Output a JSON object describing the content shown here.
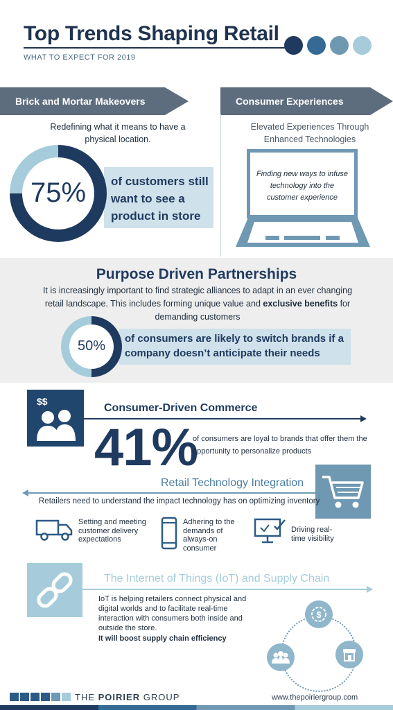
{
  "header": {
    "title": "Top Trends Shaping Retail",
    "subtitle": "WHAT TO EXPECT FOR 2019",
    "dot_colors": [
      "#1f3a5f",
      "#356a95",
      "#6f98b3",
      "#a6ccdb"
    ]
  },
  "brick": {
    "banner": "Brick and Mortar Makeovers",
    "intro": "Redefining what it means to have a physical location.",
    "stat_value": "75%",
    "stat_fraction": 0.75,
    "stat_text": "of customers still want to see a product in store"
  },
  "consumer_exp": {
    "banner": "Consumer Experiences",
    "intro": "Elevated Experiences Through Enhanced Technologies",
    "screen_text": "Finding new ways to infuse technology into the customer experience"
  },
  "partnerships": {
    "title": "Purpose Driven Partnerships",
    "body_before": "It is increasingly important to find strategic alliances to adapt in an ever changing retail landscape. This includes forming unique value and ",
    "body_bold": "exclusive benefits",
    "body_after": " for demanding customers",
    "stat_value": "50%",
    "stat_fraction": 0.5,
    "stat_text": "of consumers are likely to switch brands if a company doesn’t anticipate their needs"
  },
  "commerce": {
    "icon_label": "$$",
    "title": "Consumer-Driven Commerce",
    "stat_value": "41%",
    "stat_text": "of consumers are loyal to brands that offer them the opportunity to personalize products"
  },
  "retail_tech": {
    "title": "Retail Technology Integration",
    "intro": "Retailers need to understand the impact technology has on optimizing inventory",
    "features": [
      {
        "icon": "delivery-truck-icon",
        "text": "Setting and meeting customer delivery expectations"
      },
      {
        "icon": "smartphone-icon",
        "text": "Adhering to the demands of always-on consumer"
      },
      {
        "icon": "monitor-check-icon",
        "text": "Driving real-time visibility"
      }
    ]
  },
  "iot": {
    "title": "The Internet of Things (IoT) and Supply Chain",
    "body": "IoT is helping retailers connect physical and digital worlds and to facilitate real-time interaction with consumers both inside and outside the store.",
    "bold": "It will boost supply chain efficiency"
  },
  "footer": {
    "brand_the": "THE ",
    "brand_name": "POIRIER",
    "brand_group": " GROUP",
    "url": "www.thepoiriergroup.com"
  }
}
